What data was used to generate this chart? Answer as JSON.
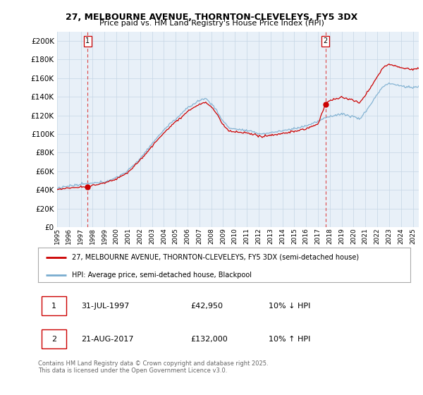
{
  "title1": "27, MELBOURNE AVENUE, THORNTON-CLEVELEYS, FY5 3DX",
  "title2": "Price paid vs. HM Land Registry's House Price Index (HPI)",
  "ylabel_values": [
    0,
    20000,
    40000,
    60000,
    80000,
    100000,
    120000,
    140000,
    160000,
    180000,
    200000
  ],
  "ylim": [
    0,
    210000
  ],
  "xlim_start": 1995.3,
  "xlim_end": 2025.5,
  "marker1_x": 1997.58,
  "marker1_y": 42950,
  "marker1_label": "1",
  "marker2_x": 2017.64,
  "marker2_y": 132000,
  "marker2_label": "2",
  "sale1_date": "31-JUL-1997",
  "sale1_price": "£42,950",
  "sale1_hpi": "10% ↓ HPI",
  "sale2_date": "21-AUG-2017",
  "sale2_price": "£132,000",
  "sale2_hpi": "10% ↑ HPI",
  "legend1": "27, MELBOURNE AVENUE, THORNTON-CLEVELEYS, FY5 3DX (semi-detached house)",
  "legend2": "HPI: Average price, semi-detached house, Blackpool",
  "footer": "Contains HM Land Registry data © Crown copyright and database right 2025.\nThis data is licensed under the Open Government Licence v3.0.",
  "red_color": "#cc0000",
  "blue_color": "#7aadcf",
  "bg_chart": "#e8f0f8",
  "background_color": "#ffffff",
  "grid_color": "#c5d5e5",
  "vline_color": "#dd4444"
}
